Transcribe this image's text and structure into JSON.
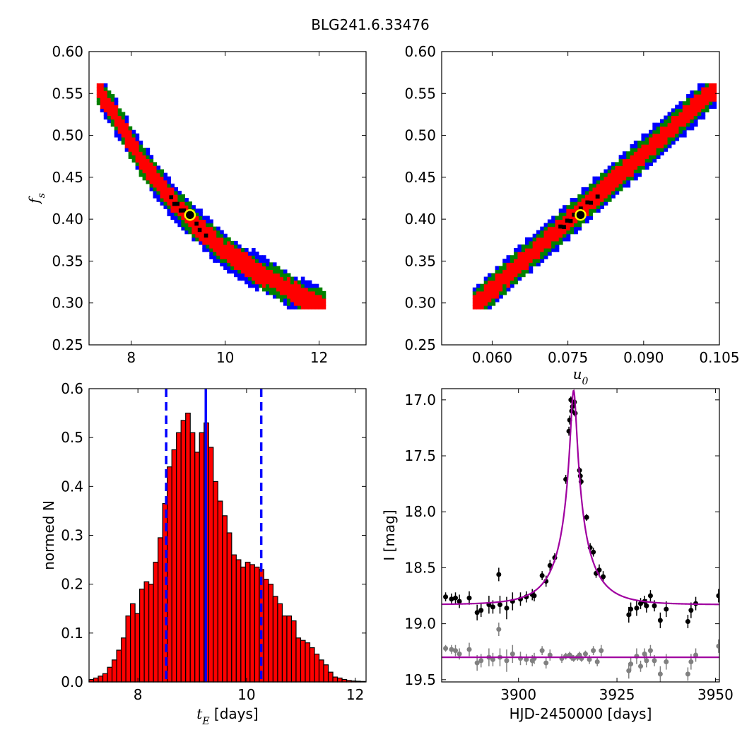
{
  "figure_title": "BLG241.6.33476",
  "colors": {
    "level1": "#0000ff",
    "level2": "#008000",
    "level3": "#ff0000",
    "density_peak": "#000000",
    "best_fit_marker": "#ffff00",
    "hist_bar": "#ff0000",
    "median_line": "#0000ff",
    "model_curve": "#a000a0",
    "data_black": "#000000",
    "data_gray": "#808080"
  },
  "chart_data": [
    {
      "id": "fs_vs_tE",
      "type": "heatmap",
      "xlabel": "",
      "ylabel": "f_s",
      "xlim": [
        7.1,
        13.0
      ],
      "ylim": [
        0.25,
        0.6
      ],
      "xticks": [
        8,
        10,
        12
      ],
      "xtick_labels": [
        "8",
        "10",
        "12"
      ],
      "yticks": [
        0.25,
        0.3,
        0.35,
        0.4,
        0.45,
        0.5,
        0.55,
        0.6
      ],
      "ytick_labels": [
        "0.25",
        "0.30",
        "0.35",
        "0.40",
        "0.45",
        "0.50",
        "0.55",
        "0.60"
      ],
      "ridge": [
        [
          7.3,
          0.555
        ],
        [
          7.7,
          0.52
        ],
        [
          8.2,
          0.472
        ],
        [
          8.8,
          0.427
        ],
        [
          9.4,
          0.392
        ],
        [
          10.0,
          0.362
        ],
        [
          10.6,
          0.34
        ],
        [
          11.2,
          0.322
        ],
        [
          11.7,
          0.305
        ],
        [
          12.1,
          0.297
        ]
      ],
      "best_fit": [
        9.25,
        0.405
      ]
    },
    {
      "id": "fs_vs_u0",
      "type": "heatmap",
      "xlabel": "u_0",
      "ylabel": "",
      "xlim": [
        0.05,
        0.105
      ],
      "ylim": [
        0.25,
        0.6
      ],
      "xticks": [
        0.06,
        0.075,
        0.09,
        0.105
      ],
      "xtick_labels": [
        "0.060",
        "0.075",
        "0.090",
        "0.105"
      ],
      "yticks": [
        0.25,
        0.3,
        0.35,
        0.4,
        0.45,
        0.5,
        0.55,
        0.6
      ],
      "ytick_labels": [
        "0.25",
        "0.30",
        "0.35",
        "0.40",
        "0.45",
        "0.50",
        "0.55",
        "0.60"
      ],
      "ridge": [
        [
          0.0565,
          0.297
        ],
        [
          0.066,
          0.35
        ],
        [
          0.0755,
          0.4
        ],
        [
          0.085,
          0.452
        ],
        [
          0.0945,
          0.503
        ],
        [
          0.104,
          0.555
        ]
      ],
      "best_fit": [
        0.0775,
        0.405
      ]
    },
    {
      "id": "tE_histogram",
      "type": "bar",
      "xlabel": "t_E [days]",
      "ylabel": "normed N",
      "xlim": [
        7.1,
        12.2
      ],
      "ylim": [
        0.0,
        0.6
      ],
      "xticks": [
        8,
        10,
        12
      ],
      "xtick_labels": [
        "8",
        "10",
        "12"
      ],
      "yticks": [
        0.0,
        0.1,
        0.2,
        0.3,
        0.4,
        0.5,
        0.6
      ],
      "ytick_labels": [
        "0.0",
        "0.1",
        "0.2",
        "0.3",
        "0.4",
        "0.5",
        "0.6"
      ],
      "bin_start": 7.1,
      "bin_width": 0.0847,
      "values": [
        0.005,
        0.008,
        0.012,
        0.017,
        0.03,
        0.045,
        0.065,
        0.09,
        0.135,
        0.16,
        0.14,
        0.19,
        0.205,
        0.2,
        0.245,
        0.295,
        0.365,
        0.44,
        0.475,
        0.51,
        0.535,
        0.55,
        0.51,
        0.47,
        0.51,
        0.53,
        0.48,
        0.41,
        0.37,
        0.34,
        0.305,
        0.26,
        0.25,
        0.235,
        0.245,
        0.24,
        0.235,
        0.23,
        0.21,
        0.2,
        0.175,
        0.16,
        0.135,
        0.135,
        0.125,
        0.09,
        0.085,
        0.08,
        0.07,
        0.057,
        0.045,
        0.035,
        0.02,
        0.01,
        0.008,
        0.005,
        0.003,
        0.002,
        0.0015,
        0.001
      ],
      "median": 9.25,
      "lower": 8.52,
      "upper": 10.27
    },
    {
      "id": "light_curve",
      "type": "line",
      "xlabel": "HJD-2450000 [days]",
      "ylabel": "I [mag]",
      "xlim": [
        3880.5,
        3951.0
      ],
      "ylim": [
        19.52,
        16.9
      ],
      "xticks": [
        3900,
        3925,
        3950
      ],
      "xtick_labels": [
        "3900",
        "3925",
        "3950"
      ],
      "yticks": [
        17.0,
        17.5,
        18.0,
        18.5,
        19.0,
        19.5
      ],
      "ytick_labels": [
        "17.0",
        "17.5",
        "18.0",
        "18.5",
        "19.0",
        "19.5"
      ],
      "model": {
        "t0": 3914.0,
        "tE": 9.25,
        "u0": 0.0775,
        "fs": 0.405,
        "baseline": 18.83
      },
      "residual_baseline": 19.3,
      "series": [
        {
          "points": [
            [
              3881.5,
              18.76,
              0.04
            ],
            [
              3883,
              18.78,
              0.05
            ],
            [
              3884,
              18.77,
              0.05
            ],
            [
              3885,
              18.8,
              0.06
            ],
            [
              3887.5,
              18.77,
              0.06
            ],
            [
              3889.5,
              18.9,
              0.07
            ],
            [
              3890.5,
              18.88,
              0.06
            ],
            [
              3892.5,
              18.83,
              0.08
            ],
            [
              3893.5,
              18.85,
              0.06
            ],
            [
              3895,
              18.56,
              0.06
            ],
            [
              3895.3,
              18.83,
              0.08
            ],
            [
              3897,
              18.86,
              0.1
            ],
            [
              3898.5,
              18.8,
              0.08
            ],
            [
              3900.5,
              18.78,
              0.06
            ],
            [
              3902,
              18.76,
              0.05
            ],
            [
              3903.5,
              18.74,
              0.05
            ],
            [
              3904,
              18.75,
              0.05
            ],
            [
              3906,
              18.57,
              0.04
            ],
            [
              3907,
              18.62,
              0.05
            ],
            [
              3908,
              18.48,
              0.05
            ],
            [
              3909.2,
              18.41,
              0.04
            ],
            [
              3912,
              17.71,
              0.04
            ],
            [
              3912.8,
              17.28,
              0.04
            ],
            [
              3913,
              17.18,
              0.04
            ],
            [
              3913.3,
              17.0,
              0.03
            ],
            [
              3913.5,
              17.1,
              0.03
            ],
            [
              3913.7,
              17.06,
              0.03
            ],
            [
              3914.2,
              17.02,
              0.03
            ],
            [
              3914.4,
              17.12,
              0.03
            ],
            [
              3915.5,
              17.63,
              0.03
            ],
            [
              3915.7,
              17.68,
              0.03
            ],
            [
              3915.9,
              17.73,
              0.03
            ],
            [
              3917.3,
              18.05,
              0.03
            ],
            [
              3918.2,
              18.32,
              0.04
            ],
            [
              3919,
              18.36,
              0.04
            ],
            [
              3919.7,
              18.55,
              0.04
            ],
            [
              3920.5,
              18.52,
              0.05
            ],
            [
              3921.5,
              18.58,
              0.05
            ],
            [
              3928,
              18.92,
              0.07
            ],
            [
              3928.5,
              18.87,
              0.06
            ],
            [
              3930,
              18.86,
              0.07
            ],
            [
              3931,
              18.82,
              0.05
            ],
            [
              3932,
              18.8,
              0.05
            ],
            [
              3932.5,
              18.84,
              0.06
            ],
            [
              3933.5,
              18.75,
              0.05
            ],
            [
              3934.5,
              18.84,
              0.05
            ],
            [
              3936,
              18.97,
              0.07
            ],
            [
              3937.5,
              18.87,
              0.07
            ],
            [
              3943,
              18.98,
              0.06
            ],
            [
              3943.8,
              18.88,
              0.07
            ],
            [
              3945,
              18.82,
              0.06
            ],
            [
              3950.8,
              18.75,
              0.06
            ]
          ]
        },
        {
          "points": [
            [
              3881.5,
              19.22,
              0.03
            ],
            [
              3883,
              19.23,
              0.04
            ],
            [
              3884,
              19.24,
              0.05
            ],
            [
              3885,
              19.27,
              0.05
            ],
            [
              3887.5,
              19.23,
              0.06
            ],
            [
              3889.5,
              19.35,
              0.07
            ],
            [
              3890.5,
              19.33,
              0.06
            ],
            [
              3892.5,
              19.3,
              0.08
            ],
            [
              3893.5,
              19.32,
              0.06
            ],
            [
              3895,
              19.05,
              0.06
            ],
            [
              3895.3,
              19.3,
              0.08
            ],
            [
              3897,
              19.33,
              0.1
            ],
            [
              3898.5,
              19.27,
              0.08
            ],
            [
              3900.5,
              19.31,
              0.06
            ],
            [
              3902,
              19.32,
              0.05
            ],
            [
              3903.5,
              19.33,
              0.05
            ],
            [
              3904,
              19.31,
              0.05
            ],
            [
              3906,
              19.24,
              0.04
            ],
            [
              3907,
              19.35,
              0.05
            ],
            [
              3908,
              19.28,
              0.05
            ],
            [
              3911,
              19.31,
              0.04
            ],
            [
              3912,
              19.29,
              0.03
            ],
            [
              3913,
              19.28,
              0.03
            ],
            [
              3913.5,
              19.3,
              0.03
            ],
            [
              3914,
              19.31,
              0.03
            ],
            [
              3915,
              19.3,
              0.03
            ],
            [
              3915.5,
              19.28,
              0.03
            ],
            [
              3916,
              19.31,
              0.03
            ],
            [
              3917,
              19.27,
              0.03
            ],
            [
              3918,
              19.32,
              0.04
            ],
            [
              3919,
              19.24,
              0.04
            ],
            [
              3920,
              19.34,
              0.04
            ],
            [
              3921,
              19.24,
              0.05
            ],
            [
              3928,
              19.42,
              0.07
            ],
            [
              3928.5,
              19.36,
              0.06
            ],
            [
              3930,
              19.29,
              0.07
            ],
            [
              3931,
              19.38,
              0.05
            ],
            [
              3932,
              19.27,
              0.05
            ],
            [
              3932.5,
              19.33,
              0.06
            ],
            [
              3933.5,
              19.24,
              0.05
            ],
            [
              3934.5,
              19.33,
              0.05
            ],
            [
              3936,
              19.45,
              0.07
            ],
            [
              3937.5,
              19.34,
              0.07
            ],
            [
              3943,
              19.45,
              0.06
            ],
            [
              3943.8,
              19.34,
              0.07
            ],
            [
              3945,
              19.28,
              0.06
            ],
            [
              3950.8,
              19.2,
              0.06
            ]
          ]
        }
      ]
    }
  ]
}
